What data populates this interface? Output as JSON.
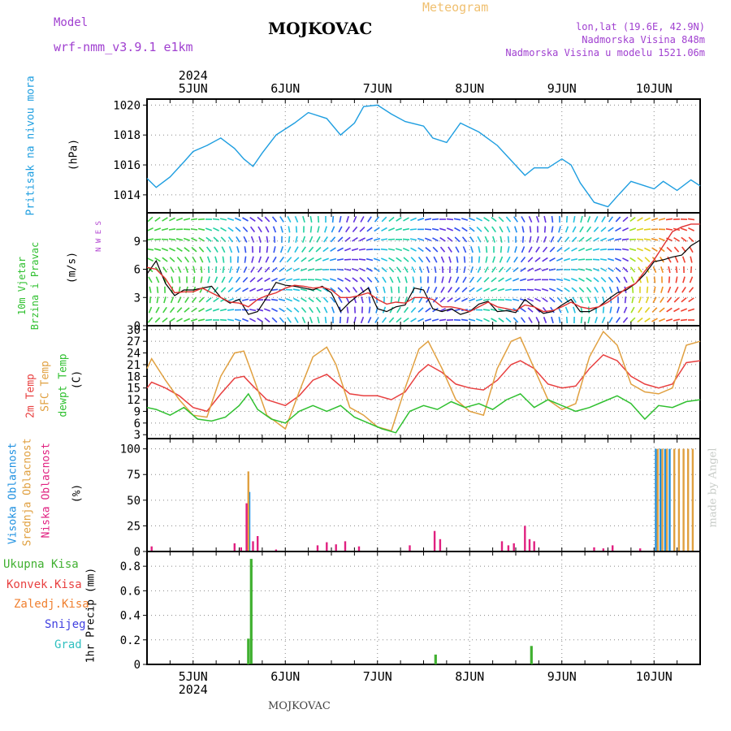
{
  "header": {
    "model_label": "Model",
    "model_name": "wrf-nmm_v3.9.1 e1km",
    "station": "MOJKOVAC",
    "product": "Meteogram",
    "lonlat": "lon,lat (19.6E, 42.9N)",
    "elevation": "Nadmorska Visina 848m",
    "model_elevation": "Nadmorska Visina u modelu 1521.06m",
    "bottom_station": "MOJKOVAC",
    "credit": "made by Angel"
  },
  "axis": {
    "year": "2024",
    "days": [
      "5JUN",
      "6JUN",
      "7JUN",
      "8JUN",
      "9JUN",
      "10JUN"
    ]
  },
  "chart_data": [
    {
      "type": "line",
      "name": "pressure",
      "title": "Pritisak na nivou mora",
      "ylabel": "(hPa)",
      "ylim": [
        1012.8,
        1020.4
      ],
      "yticks": [
        1014,
        1016,
        1018,
        1020
      ],
      "xlim": [
        4.5,
        10.5
      ],
      "color": "#1e9ee0",
      "x": [
        4.5,
        4.6,
        4.75,
        4.9,
        5.0,
        5.15,
        5.3,
        5.45,
        5.55,
        5.65,
        5.75,
        5.9,
        6.1,
        6.25,
        6.45,
        6.6,
        6.75,
        6.85,
        7.0,
        7.15,
        7.3,
        7.5,
        7.6,
        7.75,
        7.9,
        8.1,
        8.3,
        8.45,
        8.6,
        8.7,
        8.85,
        9.0,
        9.1,
        9.2,
        9.35,
        9.5,
        9.6,
        9.75,
        9.9,
        10.0,
        10.1,
        10.25,
        10.4,
        10.5
      ],
      "values": [
        1015.1,
        1014.5,
        1015.2,
        1016.2,
        1016.9,
        1017.3,
        1017.8,
        1017.1,
        1016.4,
        1015.9,
        1016.8,
        1018.0,
        1018.8,
        1019.5,
        1019.1,
        1018.0,
        1018.8,
        1019.9,
        1020.0,
        1019.4,
        1018.9,
        1018.6,
        1017.8,
        1017.5,
        1018.8,
        1018.2,
        1017.3,
        1016.3,
        1015.3,
        1015.8,
        1015.8,
        1016.4,
        1016.0,
        1014.8,
        1013.5,
        1013.2,
        1013.9,
        1014.9,
        1014.6,
        1014.4,
        1014.9,
        1014.3,
        1015.0,
        1014.6
      ]
    },
    {
      "type": "line",
      "name": "wind",
      "title": "10m Vjetar Brzina i Pravac",
      "ylabel": "(m/s)",
      "compass": "N W E S",
      "ylim": [
        0,
        12
      ],
      "yticks": [
        0,
        3,
        6,
        9
      ],
      "xlim": [
        4.5,
        10.5
      ],
      "series": [
        {
          "color": "#000000",
          "x": [
            4.5,
            4.6,
            4.7,
            4.8,
            4.9,
            5.0,
            5.1,
            5.2,
            5.3,
            5.4,
            5.5,
            5.6,
            5.7,
            5.8,
            5.9,
            6.0,
            6.1,
            6.2,
            6.3,
            6.4,
            6.5,
            6.6,
            6.7,
            6.8,
            6.9,
            7.0,
            7.1,
            7.2,
            7.3,
            7.4,
            7.5,
            7.6,
            7.7,
            7.8,
            7.9,
            8.0,
            8.1,
            8.2,
            8.3,
            8.4,
            8.5,
            8.6,
            8.7,
            8.8,
            8.9,
            9.0,
            9.1,
            9.2,
            9.3,
            9.4,
            9.5,
            9.6,
            9.7,
            9.8,
            9.9,
            10.0,
            10.1,
            10.2,
            10.3,
            10.4,
            10.5
          ],
          "values": [
            5.5,
            6.9,
            4.5,
            3.2,
            3.8,
            3.8,
            4.0,
            4.2,
            3.0,
            2.4,
            2.8,
            1.2,
            1.5,
            3.0,
            4.6,
            4.3,
            4.2,
            4.0,
            3.8,
            4.2,
            3.5,
            1.5,
            2.5,
            3.3,
            4.0,
            1.8,
            1.5,
            2.0,
            2.2,
            4.0,
            3.8,
            1.8,
            1.5,
            1.8,
            1.2,
            1.5,
            2.3,
            2.6,
            1.5,
            1.6,
            1.4,
            2.8,
            2.0,
            1.3,
            1.5,
            2.2,
            2.8,
            1.5,
            1.5,
            2.0,
            2.8,
            3.5,
            3.8,
            4.5,
            5.5,
            6.8,
            7.0,
            7.3,
            7.5,
            8.5,
            9.1
          ]
        },
        {
          "color": "#e03030",
          "x": [
            4.5,
            4.6,
            4.7,
            4.8,
            4.9,
            5.0,
            5.1,
            5.2,
            5.3,
            5.4,
            5.5,
            5.6,
            5.7,
            5.8,
            5.9,
            6.0,
            6.1,
            6.2,
            6.3,
            6.4,
            6.5,
            6.6,
            6.7,
            6.8,
            6.9,
            7.0,
            7.1,
            7.2,
            7.3,
            7.4,
            7.5,
            7.6,
            7.7,
            7.8,
            7.9,
            8.0,
            8.1,
            8.2,
            8.3,
            8.4,
            8.5,
            8.6,
            8.7,
            8.8,
            8.9,
            9.0,
            9.1,
            9.2,
            9.3,
            9.4,
            9.5,
            9.6,
            9.7,
            9.8,
            9.9,
            10.0,
            10.1,
            10.2,
            10.3,
            10.4,
            10.5
          ],
          "values": [
            6.2,
            6.0,
            5.0,
            3.5,
            3.6,
            3.6,
            4.0,
            3.5,
            3.0,
            2.5,
            2.4,
            2.0,
            2.8,
            3.2,
            3.5,
            4.0,
            4.3,
            4.2,
            4.0,
            4.1,
            3.8,
            3.0,
            3.0,
            3.2,
            3.5,
            2.8,
            2.3,
            2.5,
            2.4,
            3.0,
            3.0,
            2.8,
            2.0,
            2.0,
            1.8,
            1.5,
            2.0,
            2.5,
            2.0,
            1.8,
            1.6,
            2.2,
            2.0,
            1.5,
            1.6,
            2.0,
            2.5,
            2.0,
            1.8,
            2.0,
            2.5,
            3.2,
            4.0,
            4.5,
            5.8,
            7.0,
            8.5,
            10.0,
            10.5,
            10.8,
            10.8
          ]
        }
      ]
    },
    {
      "type": "line",
      "name": "temperature",
      "ylabel": "(C)",
      "ylim": [
        2,
        31
      ],
      "yticks": [
        3,
        6,
        9,
        12,
        15,
        18,
        21,
        24,
        27,
        30
      ],
      "xlim": [
        4.5,
        10.5
      ],
      "series": [
        {
          "name": "2m Temp",
          "color": "#e84040",
          "x": [
            4.5,
            4.55,
            4.7,
            4.85,
            5.0,
            5.15,
            5.3,
            5.45,
            5.55,
            5.65,
            5.8,
            6.0,
            6.15,
            6.3,
            6.45,
            6.55,
            6.7,
            6.85,
            7.0,
            7.15,
            7.3,
            7.45,
            7.55,
            7.7,
            7.85,
            8.0,
            8.15,
            8.3,
            8.45,
            8.55,
            8.7,
            8.85,
            9.0,
            9.15,
            9.3,
            9.45,
            9.6,
            9.75,
            9.9,
            10.05,
            10.2,
            10.35,
            10.5
          ],
          "values": [
            15.0,
            16.5,
            15.0,
            13.0,
            10.0,
            9.0,
            13.5,
            17.5,
            18.0,
            15.5,
            12.0,
            10.5,
            13.0,
            17.0,
            18.5,
            16.5,
            13.5,
            13.0,
            13.0,
            12.0,
            14.0,
            19.0,
            21.0,
            19.0,
            16.0,
            15.0,
            14.5,
            17.0,
            21.0,
            22.0,
            20.0,
            16.0,
            15.0,
            15.5,
            20.0,
            23.5,
            22.0,
            18.0,
            16.0,
            15.0,
            16.0,
            21.5,
            22.0
          ]
        },
        {
          "name": "SFC Temp",
          "color": "#e0a040",
          "x": [
            4.5,
            4.55,
            4.7,
            4.85,
            5.0,
            5.15,
            5.3,
            5.45,
            5.55,
            5.65,
            5.8,
            6.0,
            6.15,
            6.3,
            6.45,
            6.55,
            6.7,
            6.85,
            7.0,
            7.15,
            7.3,
            7.45,
            7.55,
            7.7,
            7.85,
            8.0,
            8.15,
            8.3,
            8.45,
            8.55,
            8.7,
            8.85,
            9.0,
            9.15,
            9.3,
            9.45,
            9.6,
            9.75,
            9.9,
            10.05,
            10.2,
            10.35,
            10.5
          ],
          "values": [
            20.0,
            22.5,
            17.0,
            12.0,
            8.0,
            7.5,
            18.0,
            24.0,
            24.5,
            18.0,
            8.0,
            4.5,
            14.0,
            23.0,
            25.5,
            21.0,
            10.0,
            8.0,
            5.0,
            4.0,
            15.0,
            25.0,
            27.0,
            20.0,
            12.0,
            9.0,
            8.0,
            20.0,
            27.0,
            28.0,
            20.0,
            12.0,
            9.5,
            11.0,
            23.0,
            29.5,
            26.0,
            16.0,
            14.0,
            13.5,
            15.0,
            26.0,
            27.0
          ]
        },
        {
          "name": "dewpt Temp",
          "color": "#30c030",
          "x": [
            4.5,
            4.6,
            4.75,
            4.9,
            5.05,
            5.2,
            5.35,
            5.5,
            5.6,
            5.7,
            5.85,
            6.0,
            6.15,
            6.3,
            6.45,
            6.6,
            6.75,
            6.9,
            7.05,
            7.2,
            7.35,
            7.5,
            7.65,
            7.8,
            7.95,
            8.1,
            8.25,
            8.4,
            8.55,
            8.7,
            8.85,
            9.0,
            9.15,
            9.3,
            9.45,
            9.6,
            9.75,
            9.9,
            10.05,
            10.2,
            10.35,
            10.5
          ],
          "values": [
            10.0,
            9.5,
            8.0,
            10.0,
            7.0,
            6.5,
            7.5,
            10.5,
            13.5,
            9.5,
            7.0,
            6.0,
            9.0,
            10.5,
            9.0,
            10.5,
            7.5,
            6.0,
            4.5,
            3.5,
            9.0,
            10.5,
            9.5,
            11.5,
            10.0,
            11.0,
            9.5,
            12.0,
            13.5,
            10.0,
            12.0,
            10.5,
            9.0,
            10.0,
            11.5,
            13.0,
            11.0,
            7.0,
            10.5,
            10.0,
            11.5,
            12.0
          ]
        }
      ]
    },
    {
      "type": "bar",
      "name": "cloud",
      "ylabel": "(%)",
      "ylim": [
        0,
        110
      ],
      "yticks": [
        0,
        25,
        50,
        75,
        100
      ],
      "xlim": [
        4.5,
        10.5
      ],
      "series": [
        {
          "name": "Visoka Oblacnost",
          "color": "#1e90e0",
          "x": [
            5.61,
            10.02,
            10.07,
            10.12,
            10.17
          ],
          "values": [
            58,
            100,
            100,
            100,
            100
          ]
        },
        {
          "name": "Srednja Oblacnost",
          "color": "#e0a040",
          "x": [
            5.6,
            10.04,
            10.09,
            10.14,
            10.22,
            10.27,
            10.32,
            10.37,
            10.42
          ],
          "values": [
            78,
            100,
            100,
            100,
            100,
            100,
            100,
            100,
            100
          ]
        },
        {
          "name": "Niska Oblacnost",
          "color": "#e02080",
          "x": [
            4.55,
            5.45,
            5.52,
            5.58,
            5.65,
            5.7,
            5.9,
            6.35,
            6.45,
            6.55,
            6.65,
            6.8,
            7.35,
            7.62,
            7.68,
            8.35,
            8.42,
            8.48,
            8.6,
            8.65,
            8.7,
            9.35,
            9.45,
            9.55,
            9.85
          ],
          "values": [
            5,
            8,
            4,
            47,
            10,
            15,
            2,
            6,
            9,
            7,
            10,
            5,
            6,
            20,
            12,
            10,
            6,
            8,
            25,
            12,
            10,
            4,
            3,
            6,
            3
          ]
        }
      ]
    },
    {
      "type": "bar",
      "name": "precip",
      "ylabel": "1hr Precip (mm)",
      "ylim": [
        0,
        0.92
      ],
      "yticks": [
        0,
        0.2,
        0.4,
        0.6,
        0.8
      ],
      "xlim": [
        4.5,
        10.5
      ],
      "series": [
        {
          "name": "Ukupna Kisa",
          "color": "#40b030",
          "x": [
            5.6,
            5.63,
            7.63,
            8.67
          ],
          "values": [
            0.21,
            0.86,
            0.08,
            0.15
          ]
        },
        {
          "name": "Konvek.Kisa",
          "color": "#e84040",
          "x": [],
          "values": []
        },
        {
          "name": "Zaledj.Kisa",
          "color": "#f08030",
          "x": [],
          "values": []
        },
        {
          "name": "Snijeg",
          "color": "#4040e0",
          "x": [],
          "values": []
        },
        {
          "name": "Grad",
          "color": "#30c0c0",
          "x": [],
          "values": []
        }
      ]
    }
  ]
}
